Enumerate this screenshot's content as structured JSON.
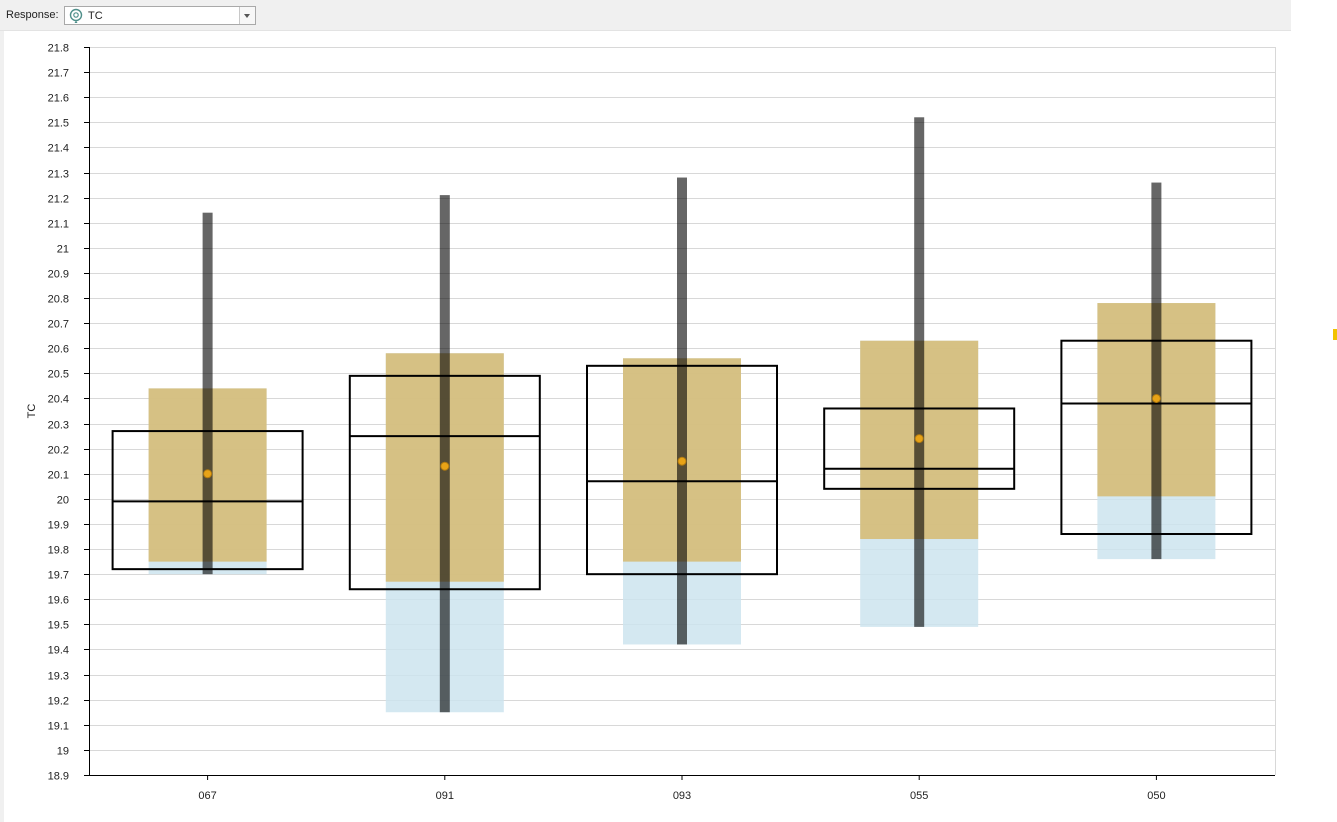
{
  "toolbar": {
    "response_label": "Response:",
    "response_value": "TC",
    "response_icon": "target-pin-icon",
    "dropdown_icon": "chevron-down-icon"
  },
  "chart_data": {
    "type": "box",
    "ylabel": "TC",
    "xlabel": "",
    "ylim": [
      18.9,
      21.8
    ],
    "ytick_step": 0.1,
    "grid": "horizontal",
    "categories": [
      "067",
      "091",
      "093",
      "055",
      "050"
    ],
    "whisker_range": [
      [
        19.7,
        21.14
      ],
      [
        19.15,
        21.21
      ],
      [
        19.42,
        21.28
      ],
      [
        19.49,
        21.52
      ],
      [
        19.76,
        21.26
      ]
    ],
    "box": [
      {
        "q1": 19.72,
        "median": 19.99,
        "q3": 20.27
      },
      {
        "q1": 19.64,
        "median": 20.25,
        "q3": 20.49
      },
      {
        "q1": 19.7,
        "median": 20.07,
        "q3": 20.53
      },
      {
        "q1": 20.04,
        "median": 20.12,
        "q3": 20.36
      },
      {
        "q1": 19.86,
        "median": 20.38,
        "q3": 20.63
      }
    ],
    "mean": [
      20.1,
      20.13,
      20.15,
      20.24,
      20.4
    ],
    "upper_band": [
      [
        19.75,
        20.44
      ],
      [
        19.67,
        20.58
      ],
      [
        19.75,
        20.56
      ],
      [
        19.84,
        20.63
      ],
      [
        20.01,
        20.78
      ]
    ],
    "lower_band": [
      [
        19.7,
        20.44
      ],
      [
        19.15,
        20.58
      ],
      [
        19.42,
        20.56
      ],
      [
        19.49,
        20.63
      ],
      [
        19.76,
        20.78
      ]
    ],
    "colors": {
      "upper_band": "#d6bd78",
      "lower_band": "#cde4ee",
      "whisker": "#000000",
      "box_stroke": "#000000",
      "mean_fill": "#e8a317",
      "mean_stroke": "#b07a10",
      "grid": "#d8d8d8",
      "axis": "#000000"
    }
  }
}
